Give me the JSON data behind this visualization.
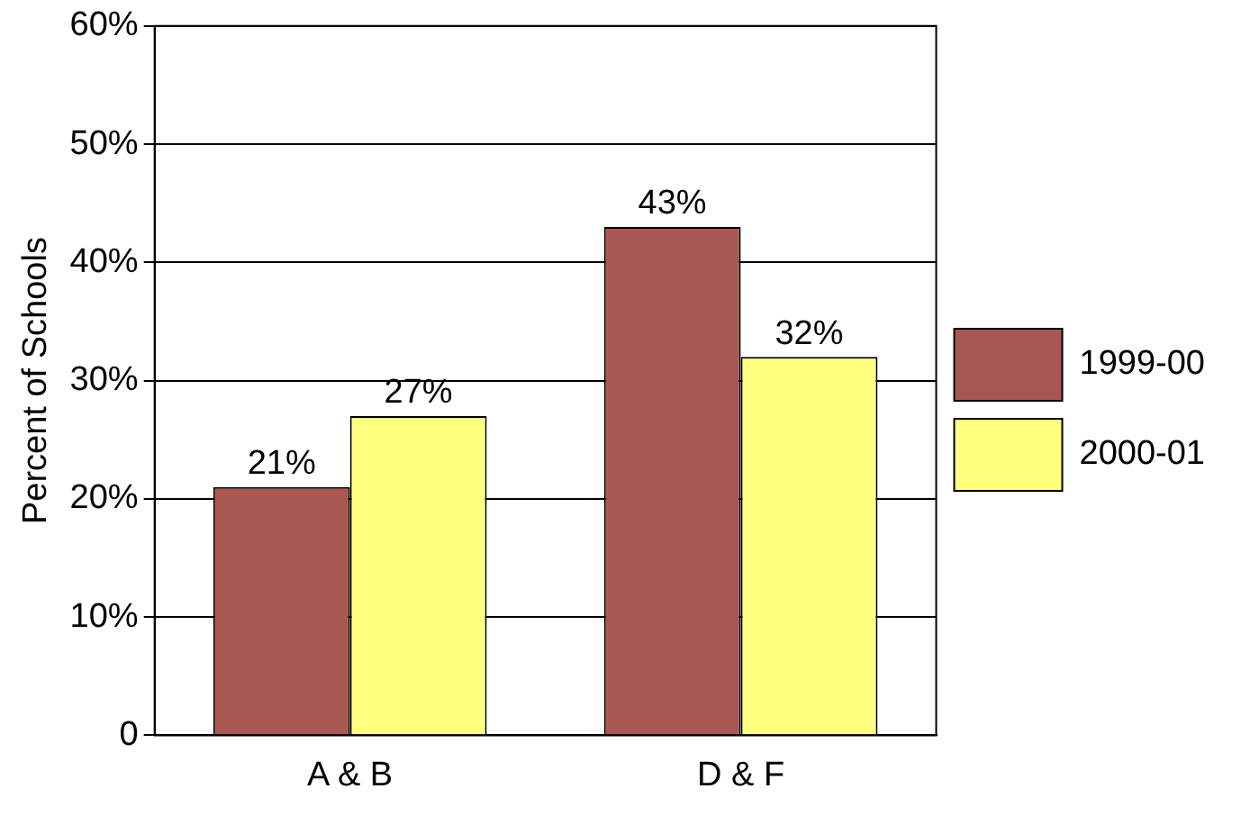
{
  "chart_data": {
    "type": "bar",
    "ylabel": "Percent of Schools",
    "categories": [
      "A & B",
      "D & F"
    ],
    "series": [
      {
        "name": "1999-00",
        "color": "#a85753",
        "values": [
          21,
          43
        ],
        "value_labels": [
          "21%",
          "43%"
        ]
      },
      {
        "name": "2000-01",
        "color": "#ffff80",
        "values": [
          27,
          32
        ],
        "value_labels": [
          "27%",
          "32%"
        ]
      }
    ],
    "ylim": [
      0,
      60
    ],
    "yticks": [
      0,
      {
        "value": 10,
        "label": "10%"
      },
      {
        "value": 20,
        "label": "20%"
      },
      {
        "value": 30,
        "label": "30%"
      },
      {
        "value": 40,
        "label": "40%"
      },
      {
        "value": 50,
        "label": "50%"
      },
      {
        "value": 60,
        "label": "60%"
      }
    ],
    "grid": "y",
    "legend": "right"
  }
}
